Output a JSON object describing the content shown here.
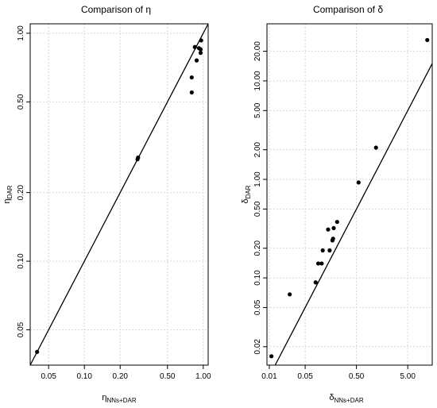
{
  "chart_data": [
    {
      "type": "scatter",
      "title_prefix": "Comparison of",
      "title_symbol": "η",
      "xlabel_symbol": "η",
      "xlabel_subscript": "NNs+DAR",
      "ylabel_symbol": "η",
      "ylabel_subscript": "DAR",
      "x_scale": "log",
      "y_scale": "log",
      "xlim": [
        0.035,
        1.1
      ],
      "ylim": [
        0.035,
        1.1
      ],
      "x_ticks": [
        0.05,
        0.1,
        0.2,
        0.5,
        1.0
      ],
      "x_tick_labels": [
        "0.05",
        "0.10",
        "0.20",
        "0.50",
        "1.00"
      ],
      "y_ticks": [
        0.05,
        0.1,
        0.2,
        0.5,
        1.0
      ],
      "y_tick_labels": [
        "0.05",
        "0.10",
        "0.20",
        "0.50",
        "1.00"
      ],
      "grid": true,
      "identity_line": true,
      "points": [
        {
          "x": 0.04,
          "y": 0.04
        },
        {
          "x": 0.28,
          "y": 0.28
        },
        {
          "x": 0.283,
          "y": 0.285
        },
        {
          "x": 0.8,
          "y": 0.55
        },
        {
          "x": 0.8,
          "y": 0.64
        },
        {
          "x": 0.85,
          "y": 0.87
        },
        {
          "x": 0.88,
          "y": 0.76
        },
        {
          "x": 0.92,
          "y": 0.86
        },
        {
          "x": 0.95,
          "y": 0.82
        },
        {
          "x": 0.95,
          "y": 0.85
        },
        {
          "x": 0.96,
          "y": 0.93
        }
      ]
    },
    {
      "type": "scatter",
      "title_prefix": "Comparison of",
      "title_symbol": "δ",
      "xlabel_symbol": "δ",
      "xlabel_subscript": "NNs+DAR",
      "ylabel_symbol": "δ",
      "ylabel_subscript": "DAR",
      "x_scale": "log",
      "y_scale": "log",
      "xlim": [
        0.009,
        15
      ],
      "ylim": [
        0.013,
        38
      ],
      "x_ticks": [
        0.01,
        0.05,
        0.5,
        5.0
      ],
      "x_tick_labels": [
        "0.01",
        "0.05",
        "0.50",
        "5.00"
      ],
      "y_ticks": [
        0.02,
        0.05,
        0.1,
        0.2,
        0.5,
        1.0,
        2.0,
        5.0,
        10.0,
        20.0
      ],
      "y_tick_labels": [
        "0.02",
        "0.05",
        "0.10",
        "0.20",
        "0.50",
        "1.00",
        "2.00",
        "5.00",
        "10.00",
        "20.00"
      ],
      "grid": true,
      "identity_line": true,
      "points": [
        {
          "x": 0.011,
          "y": 0.016
        },
        {
          "x": 0.025,
          "y": 0.068
        },
        {
          "x": 0.08,
          "y": 0.09
        },
        {
          "x": 0.09,
          "y": 0.14
        },
        {
          "x": 0.105,
          "y": 0.14
        },
        {
          "x": 0.11,
          "y": 0.19
        },
        {
          "x": 0.14,
          "y": 0.31
        },
        {
          "x": 0.15,
          "y": 0.19
        },
        {
          "x": 0.17,
          "y": 0.24
        },
        {
          "x": 0.175,
          "y": 0.25
        },
        {
          "x": 0.18,
          "y": 0.32
        },
        {
          "x": 0.21,
          "y": 0.37
        },
        {
          "x": 0.55,
          "y": 0.93
        },
        {
          "x": 1.2,
          "y": 2.1
        },
        {
          "x": 12,
          "y": 26
        }
      ]
    }
  ]
}
